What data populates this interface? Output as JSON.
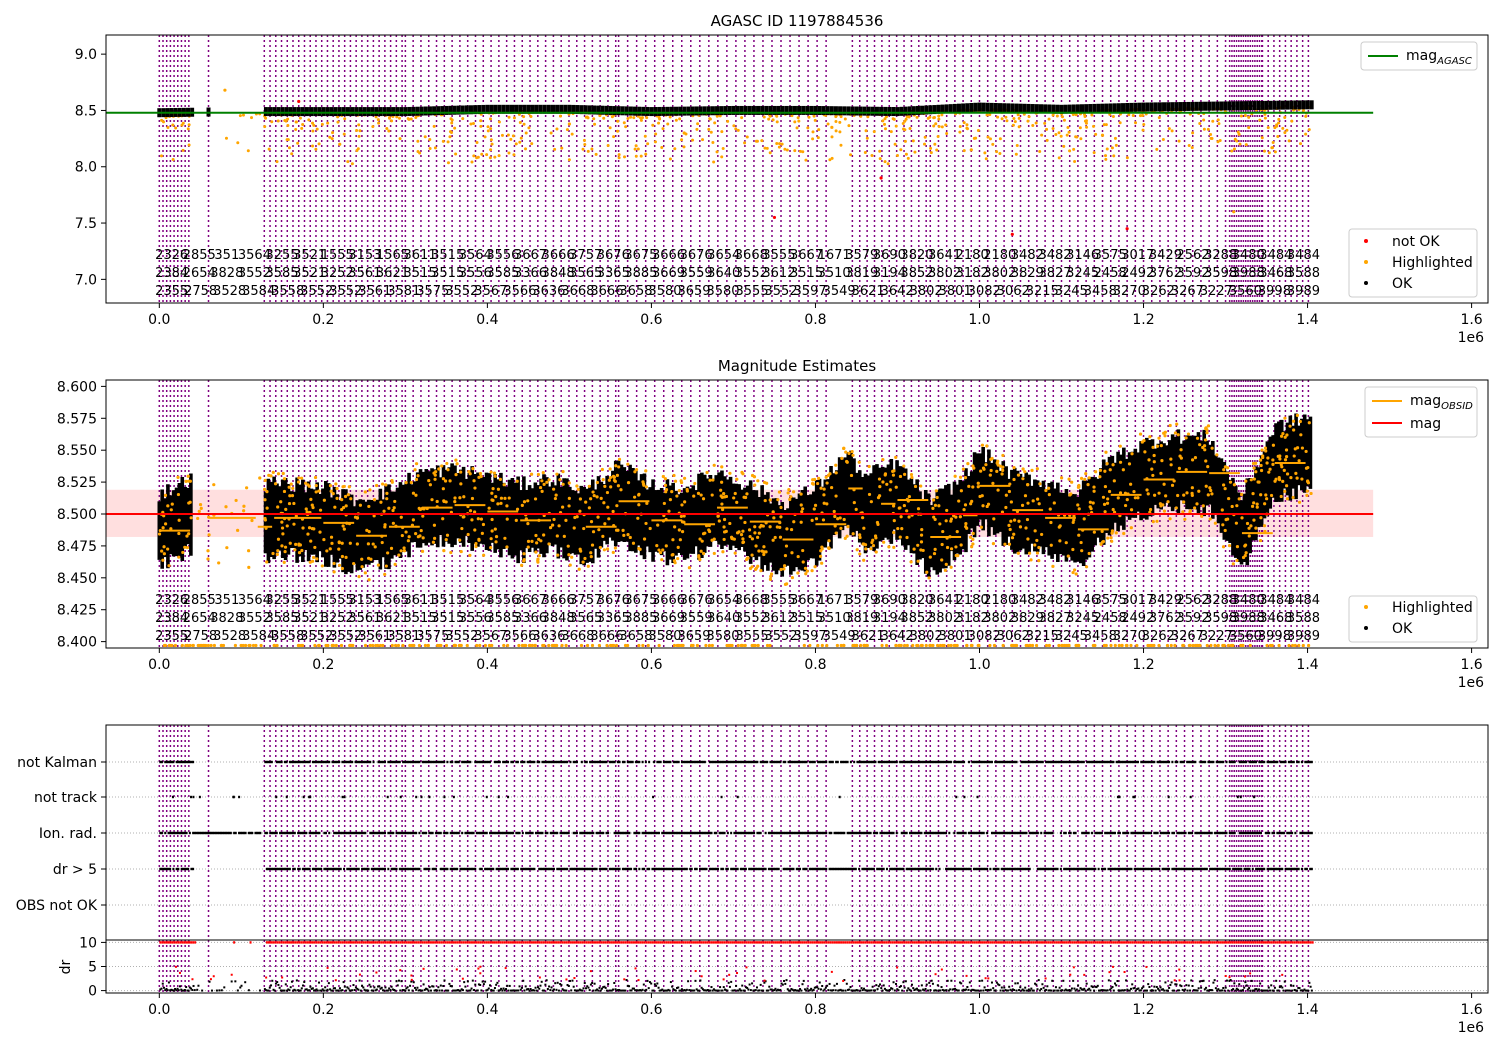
{
  "chart_data": [
    {
      "type": "scatter",
      "title": "AGASC ID 1197884536",
      "x_tick_labels": [
        "0.0",
        "0.2",
        "0.4",
        "0.6",
        "0.8",
        "1.0",
        "1.2",
        "1.4",
        "1.6"
      ],
      "x_ticks": [
        0,
        200000,
        400000,
        600000,
        800000,
        1000000,
        1200000,
        1400000,
        1600000
      ],
      "x_offset_label": "1e6",
      "xlim": [
        -65000,
        1620000
      ],
      "ylim": [
        6.79,
        9.17
      ],
      "y_ticks": [
        7.0,
        7.5,
        8.0,
        8.5,
        9.0
      ],
      "y_tick_labels": [
        "7.0",
        "7.5",
        "8.0",
        "8.5",
        "9.0"
      ],
      "hline": {
        "y": 8.48,
        "x_range": [
          -65000,
          1480000
        ],
        "color": "#008000"
      },
      "legend_upper": {
        "position": "upper-right",
        "entries": [
          {
            "label_main": "mag",
            "label_sub": "AGASC",
            "color": "#008000"
          }
        ]
      },
      "legend_lower": {
        "position": "lower-right",
        "entries": [
          {
            "label": "not OK",
            "color": "#ff0000"
          },
          {
            "label": "Highlighted",
            "color": "#ffa500"
          },
          {
            "label": "OK",
            "color": "#000000"
          }
        ]
      },
      "series": [
        {
          "name": "OK",
          "color": "#000000",
          "x": [
            0,
            100000,
            200000,
            300000,
            400000,
            500000,
            600000,
            700000,
            800000,
            900000,
            1000000,
            1100000,
            1200000,
            1300000,
            1400000
          ],
          "y": [
            8.48,
            8.49,
            8.49,
            8.49,
            8.51,
            8.51,
            8.49,
            8.5,
            8.5,
            8.49,
            8.53,
            8.51,
            8.53,
            8.54,
            8.55
          ]
        },
        {
          "name": "Highlighted",
          "color": "#ffa500",
          "x": [
            80000,
            220000,
            500000,
            640000,
            820000,
            990000,
            1150000,
            1310000
          ],
          "y": [
            8.68,
            8.2,
            8.38,
            8.3,
            8.35,
            8.15,
            8.28,
            7.6
          ]
        },
        {
          "name": "not OK",
          "color": "#ff0000",
          "x": [
            170000,
            750000,
            880000,
            1040000,
            1180000
          ],
          "y": [
            8.58,
            7.55,
            7.9,
            7.4,
            7.45
          ]
        }
      ]
    },
    {
      "type": "scatter",
      "title": "Magnitude Estimates",
      "x_tick_labels": [
        "0.0",
        "0.2",
        "0.4",
        "0.6",
        "0.8",
        "1.0",
        "1.2",
        "1.4",
        "1.6"
      ],
      "x_ticks": [
        0,
        200000,
        400000,
        600000,
        800000,
        1000000,
        1200000,
        1400000,
        1600000
      ],
      "x_offset_label": "1e6",
      "xlim": [
        -65000,
        1620000
      ],
      "ylim": [
        8.395,
        8.605
      ],
      "y_ticks": [
        8.4,
        8.425,
        8.45,
        8.475,
        8.5,
        8.525,
        8.55,
        8.575,
        8.6
      ],
      "y_tick_labels": [
        "8.400",
        "8.425",
        "8.450",
        "8.475",
        "8.500",
        "8.525",
        "8.550",
        "8.575",
        "8.600"
      ],
      "hline": {
        "y": 8.5,
        "x_range": [
          -65000,
          1480000
        ],
        "color": "#ff0000"
      },
      "band": {
        "y_range": [
          8.482,
          8.519
        ],
        "x_range": [
          -65000,
          1480000
        ],
        "color": "#ffc0c0"
      },
      "legend_upper": {
        "position": "upper-right",
        "entries": [
          {
            "label_main": "mag",
            "label_sub": "OBSID",
            "color": "#ffa500"
          },
          {
            "label": "mag",
            "color": "#ff0000"
          }
        ]
      },
      "legend_lower": {
        "position": "lower-right",
        "entries": [
          {
            "label": "Highlighted",
            "color": "#ffa500"
          },
          {
            "label": "OK",
            "color": "#000000"
          }
        ]
      },
      "series": [
        {
          "name": "mag_OBSID",
          "color": "#ffa500",
          "x": [
            0,
            40000,
            60000,
            120000,
            140000,
            200000,
            240000,
            280000,
            320000,
            360000,
            400000,
            440000,
            480000,
            520000,
            560000,
            600000,
            640000,
            680000,
            720000,
            760000,
            800000,
            840000,
            860000,
            880000,
            900000,
            940000,
            980000,
            1000000,
            1040000,
            1080000,
            1120000,
            1160000,
            1200000,
            1240000,
            1280000,
            1320000,
            1360000,
            1400000
          ],
          "y": [
            8.487,
            8.5,
            8.497,
            8.49,
            8.497,
            8.493,
            8.483,
            8.49,
            8.505,
            8.507,
            8.502,
            8.495,
            8.5,
            8.49,
            8.51,
            8.495,
            8.492,
            8.505,
            8.494,
            8.48,
            8.492,
            8.52,
            8.5,
            8.508,
            8.511,
            8.482,
            8.499,
            8.522,
            8.503,
            8.497,
            8.488,
            8.515,
            8.527,
            8.533,
            8.532,
            8.485,
            8.54,
            8.548
          ]
        }
      ]
    },
    {
      "type": "scatter",
      "x_tick_labels": [
        "0.0",
        "0.2",
        "0.4",
        "0.6",
        "0.8",
        "1.0",
        "1.2",
        "1.4",
        "1.6"
      ],
      "x_ticks": [
        0,
        200000,
        400000,
        600000,
        800000,
        1000000,
        1200000,
        1400000,
        1600000
      ],
      "x_offset_label": "1e6",
      "xlim": [
        -65000,
        1620000
      ],
      "flag_rows": [
        "not Kalman",
        "not track",
        "Ion. rad.",
        "dr > 5",
        "OBS not OK"
      ],
      "grid": "dotted-horizontal",
      "dr_panel": {
        "ylabel": "dr",
        "y_ticks": [
          0,
          5,
          10
        ],
        "y_tick_labels": [
          "0",
          "5",
          "10"
        ],
        "ylim": [
          -0.5,
          10.5
        ]
      }
    }
  ],
  "obsid_labels": {
    "note": "",
    "row1": [
      "2326",
      "2855",
      "351",
      "3564",
      "3255",
      "3521",
      "1555",
      "3153",
      "1565",
      "3611",
      "3515",
      "3564",
      "3556",
      "3667",
      "3666",
      "3757",
      "3676",
      "3675",
      "3666",
      "3676",
      "3654",
      "3668",
      "3555",
      "3667",
      "1671",
      "3579",
      "3690",
      "3820",
      "3641",
      "2180",
      "2180",
      "3482",
      "3482",
      "3146",
      "3575",
      "3017",
      "3429",
      "2562",
      "3288",
      "3480",
      "3484",
      "3484"
    ],
    "row2": [
      "2384",
      "2654",
      "3828",
      "3552",
      "3585",
      "3521",
      "3252",
      "3561",
      "3621",
      "3515",
      "3515",
      "3556",
      "3585",
      "3366",
      "3848",
      "3565",
      "3365",
      "3885",
      "3669",
      "3559",
      "3640",
      "3552",
      "3612",
      "3515",
      "3510",
      "3819",
      "3194",
      "3852",
      "3802",
      "3182",
      "3802",
      "3829",
      "3827",
      "3245",
      "2458",
      "2492",
      "3762",
      "3592",
      "3598",
      "3988",
      "3468",
      "3588"
    ],
    "row3": [
      "2355",
      "2758",
      "3528",
      "3584",
      "3558",
      "3552",
      "3552",
      "3561",
      "3581",
      "3575",
      "3552",
      "3567",
      "3566",
      "3636",
      "3668",
      "3666",
      "3658",
      "3580",
      "3659",
      "3580",
      "3555",
      "3552",
      "3597",
      "3549",
      "3621",
      "3642",
      "3802",
      "3801",
      "3082",
      "3062",
      "3215",
      "3245",
      "3458",
      "3270",
      "3262",
      "3267",
      "3227",
      "3560",
      "3998",
      "3989"
    ]
  }
}
